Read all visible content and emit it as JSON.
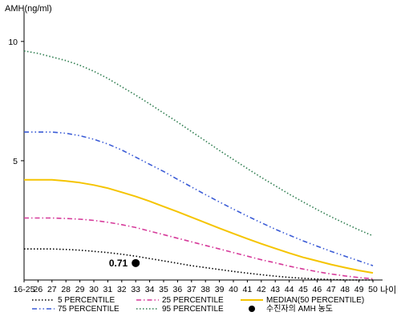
{
  "chart_data": {
    "type": "line",
    "ylabel": "AMH(ng/ml)",
    "xlabel": "나이",
    "categories": [
      "16-25",
      "26",
      "27",
      "28",
      "29",
      "30",
      "31",
      "32",
      "33",
      "34",
      "35",
      "36",
      "37",
      "38",
      "39",
      "40",
      "41",
      "42",
      "43",
      "44",
      "45",
      "46",
      "47",
      "48",
      "49",
      "50"
    ],
    "ylim": [
      0,
      11
    ],
    "yticks": [
      5,
      10
    ],
    "grid": false,
    "legend_position": "bottom",
    "series": [
      {
        "name": "5 PERCENTILE",
        "color": "#000000",
        "dash": "dotted",
        "values": [
          1.3,
          1.3,
          1.3,
          1.28,
          1.25,
          1.2,
          1.15,
          1.08,
          1.0,
          0.9,
          0.8,
          0.7,
          0.6,
          0.52,
          0.44,
          0.36,
          0.29,
          0.22,
          0.16,
          0.11,
          0.07,
          0.04,
          0.02,
          0.0,
          0.0,
          0.0
        ]
      },
      {
        "name": "25 PERCENTILE",
        "color": "#d63a9a",
        "dash": "dashdot",
        "values": [
          2.6,
          2.6,
          2.6,
          2.58,
          2.55,
          2.5,
          2.42,
          2.32,
          2.2,
          2.05,
          1.9,
          1.75,
          1.6,
          1.45,
          1.3,
          1.15,
          1.0,
          0.85,
          0.72,
          0.58,
          0.46,
          0.35,
          0.25,
          0.17,
          0.1,
          0.05
        ]
      },
      {
        "name": "MEDIAN(50 PERCENTILE)",
        "color": "#f5c400",
        "dash": "solid",
        "values": [
          4.2,
          4.2,
          4.2,
          4.15,
          4.08,
          3.98,
          3.85,
          3.68,
          3.5,
          3.3,
          3.08,
          2.86,
          2.63,
          2.4,
          2.17,
          1.95,
          1.73,
          1.52,
          1.32,
          1.13,
          0.95,
          0.8,
          0.65,
          0.52,
          0.4,
          0.3
        ]
      },
      {
        "name": "75 PERCENTILE",
        "color": "#3a5bd6",
        "dash": "dashdotdot",
        "values": [
          6.2,
          6.2,
          6.2,
          6.15,
          6.05,
          5.9,
          5.7,
          5.45,
          5.15,
          4.85,
          4.55,
          4.22,
          3.9,
          3.58,
          3.27,
          2.97,
          2.68,
          2.4,
          2.13,
          1.88,
          1.64,
          1.42,
          1.2,
          1.0,
          0.8,
          0.6
        ]
      },
      {
        "name": "95 PERCENTILE",
        "color": "#2e7d4f",
        "dash": "dotted",
        "values": [
          9.6,
          9.5,
          9.35,
          9.2,
          9.0,
          8.75,
          8.45,
          8.1,
          7.75,
          7.38,
          7.0,
          6.62,
          6.22,
          5.83,
          5.43,
          5.05,
          4.67,
          4.3,
          3.95,
          3.6,
          3.27,
          2.95,
          2.65,
          2.37,
          2.1,
          1.85
        ]
      }
    ],
    "markers": [
      {
        "name": "수진자의 AMH 농도",
        "x": "33",
        "y": 0.71,
        "label": "0.71",
        "color": "#000000"
      }
    ]
  }
}
